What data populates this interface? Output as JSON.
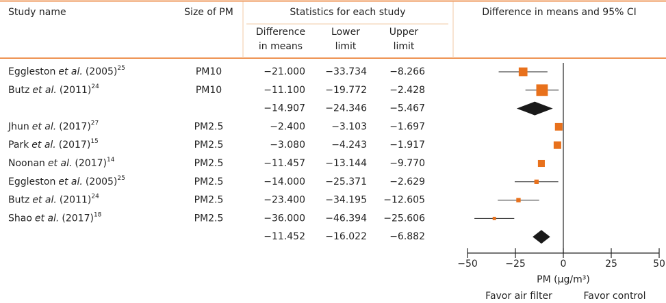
{
  "chart_data": {
    "type": "forest",
    "header": {
      "study": "Study name",
      "size": "Size of PM",
      "stats": "Statistics for each study",
      "plot": "Difference in means and 95% CI",
      "columns": [
        [
          "Difference",
          "in means"
        ],
        [
          "Lower",
          "limit"
        ],
        [
          "Upper",
          "limit"
        ]
      ]
    },
    "rows": [
      {
        "author": "Eggleston",
        "etal": "et al.",
        "year": "(2005)",
        "ref": "25",
        "size": "PM10",
        "values": [
          -21,
          -33.734,
          -8.266
        ],
        "value_labels": [
          "−21.000",
          "−33.734",
          "−8.266"
        ],
        "weight": 8
      },
      {
        "author": "Butz",
        "etal": "et al.",
        "year": "(2011)",
        "ref": "24",
        "size": "PM10",
        "values": [
          -11.1,
          -19.772,
          -2.428
        ],
        "value_labels": [
          "−11.100",
          "−19.772",
          "−2.428"
        ],
        "weight": 14
      },
      {
        "summary": true,
        "values": [
          -14.907,
          -24.346,
          -5.467
        ],
        "value_labels": [
          "−14.907",
          "−24.346",
          "−5.467"
        ]
      },
      {
        "author": "Jhun",
        "etal": "et al.",
        "year": "(2017)",
        "ref": "27",
        "size": "PM2.5",
        "values": [
          -2.4,
          -3.103,
          -1.697
        ],
        "value_labels": [
          "−2.400",
          "−3.103",
          "−1.697"
        ],
        "weight": 6
      },
      {
        "author": "Park",
        "etal": "et al.",
        "year": "(2017)",
        "ref": "15",
        "size": "PM2.5",
        "values": [
          -3.08,
          -4.243,
          -1.917
        ],
        "value_labels": [
          "−3.080",
          "−4.243",
          "−1.917"
        ],
        "weight": 6
      },
      {
        "author": "Noonan",
        "etal": "et al.",
        "year": "(2017)",
        "ref": "14",
        "size": "PM2.5",
        "values": [
          -11.457,
          -13.144,
          -9.77
        ],
        "value_labels": [
          "−11.457",
          "−13.144",
          "−9.770"
        ],
        "weight": 5
      },
      {
        "author": "Eggleston",
        "etal": "et al.",
        "year": "(2005)",
        "ref": "25",
        "size": "PM2.5",
        "values": [
          -14,
          -25.371,
          -2.629
        ],
        "value_labels": [
          "−14.000",
          "−25.371",
          "−2.629"
        ],
        "weight": 2
      },
      {
        "author": "Butz",
        "etal": "et al.",
        "year": "(2011)",
        "ref": "24",
        "size": "PM2.5",
        "values": [
          -23.4,
          -34.195,
          -12.605
        ],
        "value_labels": [
          "−23.400",
          "−34.195",
          "−12.605"
        ],
        "weight": 2
      },
      {
        "author": "Shao",
        "etal": "et al.",
        "year": "(2017)",
        "ref": "18",
        "size": "PM2.5",
        "values": [
          -36,
          -46.394,
          -25.606
        ],
        "value_labels": [
          "−36.000",
          "−46.394",
          "−25.606"
        ],
        "weight": 1.2
      },
      {
        "summary": true,
        "values": [
          -11.452,
          -16.022,
          -6.882
        ],
        "value_labels": [
          "−11.452",
          "−16.022",
          "−6.882"
        ]
      }
    ],
    "color": "#e8711c",
    "summary_color": "#1a1a1a",
    "xlim": [
      -50,
      50
    ],
    "xticks": [
      {
        "value": -50,
        "label": "−50"
      },
      {
        "value": -25,
        "label": "−25"
      },
      0,
      25,
      50
    ],
    "xlabel": "PM (μg/m³)",
    "favor": [
      "Favor air filter",
      "Favor control"
    ]
  }
}
